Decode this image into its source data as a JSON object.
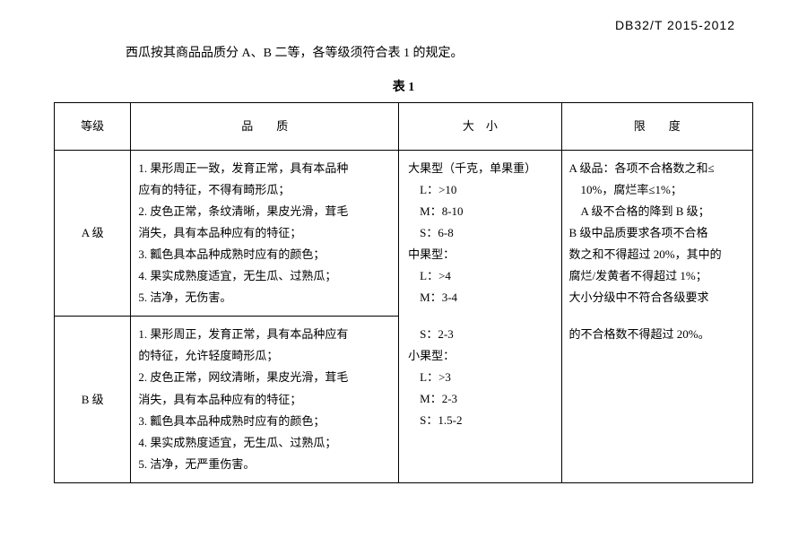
{
  "doc_code": "DB32/T  2015-2012",
  "intro": "西瓜按其商品品质分 A、B 二等，各等级须符合表 1 的规定。",
  "table_title": "表 1",
  "headers": {
    "grade": "等级",
    "quality": "品　　质",
    "size": "大　小",
    "limit": "限　　度"
  },
  "rows": {
    "a": {
      "grade": "A 级",
      "quality": [
        "1. 果形周正一致，发育正常，具有本品种",
        "应有的特征，不得有畸形瓜；",
        "2. 皮色正常，条纹清晰，果皮光滑，茸毛",
        "消失，具有本品种应有的特征；",
        "3. 瓤色具本品种成熟时应有的颜色；",
        "4. 果实成熟度适宜，无生瓜、过熟瓜；",
        "5. 洁净，无伤害。"
      ]
    },
    "b": {
      "grade": "B 级",
      "quality": [
        "1. 果形周正，发育正常，具有本品种应有",
        "的特征，允许轻度畸形瓜；",
        "2. 皮色正常，网纹清晰，果皮光滑，茸毛",
        "消失，具有本品种应有的特征；",
        "3. 瓤色具本品种成熟时应有的颜色；",
        "4. 果实成熟度适宜，无生瓜、过熟瓜；",
        "5. 洁净，无严重伤害。"
      ]
    }
  },
  "size_lines": [
    "大果型（千克，单果重）",
    "　L：>10",
    "　M：8-10",
    "　S：6-8",
    "中果型：",
    "　L：>4",
    "　M：3-4",
    "　S：2-3",
    "小果型：",
    "　L：>3",
    "　M：2-3",
    "　S：1.5-2"
  ],
  "limit_lines": [
    "A 级品：各项不合格数之和≤",
    "　10%，腐烂率≤1%；",
    "　A 级不合格的降到 B 级；",
    "B 级中品质要求各项不合格",
    "数之和不得超过 20%，其中的",
    "腐烂/发黄者不得超过 1%；",
    "大小分级中不符合各级要求",
    "的不合格数不得超过 20%。"
  ]
}
